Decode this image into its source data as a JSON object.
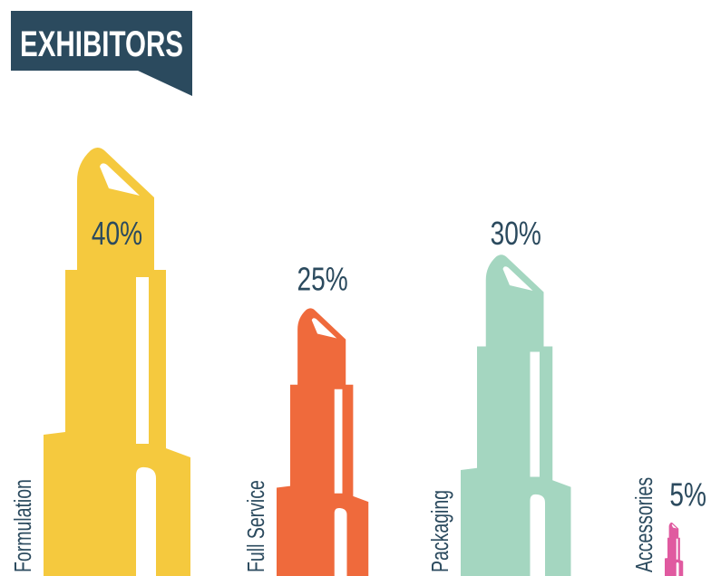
{
  "chart_data": {
    "type": "bar",
    "title": "EXHIBITORS",
    "categories": [
      "Formulation",
      "Full Service",
      "Packaging",
      "Accessories"
    ],
    "values": [
      40,
      25,
      30,
      5
    ],
    "value_labels": [
      "40%",
      "25%",
      "30%",
      "5%"
    ],
    "colors": [
      "#f5c93e",
      "#ef6a3c",
      "#a4d6c0",
      "#e05aa0"
    ]
  }
}
